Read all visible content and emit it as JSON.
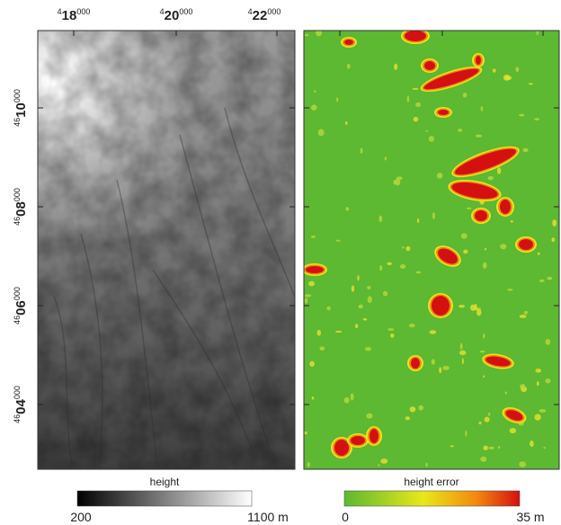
{
  "map": {
    "x_ticks": [
      {
        "prefix": "4",
        "main": "18",
        "suffix": "000"
      },
      {
        "prefix": "4",
        "main": "20",
        "suffix": "000"
      },
      {
        "prefix": "4",
        "main": "22",
        "suffix": "000"
      }
    ],
    "y_ticks": [
      {
        "prefix": "46",
        "main": "10",
        "suffix": "000"
      },
      {
        "prefix": "46",
        "main": "08",
        "suffix": "000"
      },
      {
        "prefix": "46",
        "main": "06",
        "suffix": "000"
      },
      {
        "prefix": "46",
        "main": "04",
        "suffix": "000"
      }
    ],
    "height_legend": {
      "title": "height",
      "min": "200",
      "max": "1100 m"
    },
    "error_legend": {
      "title": "height error",
      "min": "0",
      "max": "35 m"
    }
  }
}
